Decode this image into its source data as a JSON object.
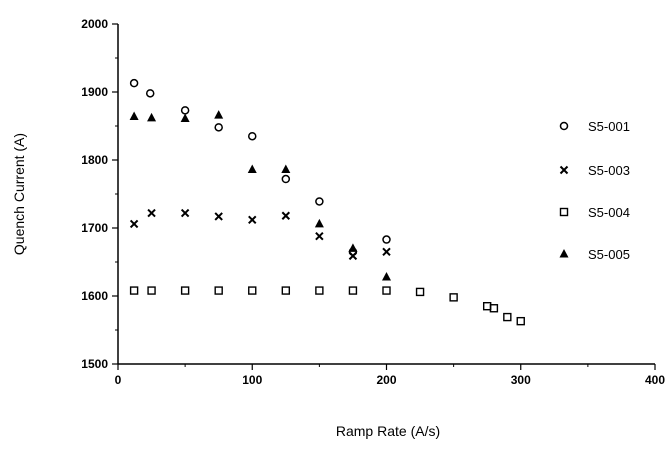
{
  "chart_data": {
    "type": "scatter",
    "xlabel": "Ramp Rate (A/s)",
    "ylabel": "Quench Current (A)",
    "xlim": [
      0,
      400
    ],
    "ylim": [
      1500,
      2000
    ],
    "xticks": [
      "0",
      "100",
      "200",
      "300",
      "400"
    ],
    "yticks": [
      "1500",
      "1600",
      "1700",
      "1800",
      "1900",
      "2000"
    ],
    "grid": false,
    "legend_position": "right",
    "series": [
      {
        "name": "S5-001",
        "marker": "circle",
        "points": [
          [
            12,
            1913
          ],
          [
            24,
            1898
          ],
          [
            50,
            1873
          ],
          [
            75,
            1848
          ],
          [
            100,
            1835
          ],
          [
            125,
            1772
          ],
          [
            150,
            1739
          ],
          [
            175,
            1665
          ],
          [
            200,
            1683
          ]
        ]
      },
      {
        "name": "S5-003",
        "marker": "x",
        "points": [
          [
            12,
            1706
          ],
          [
            25,
            1722
          ],
          [
            50,
            1722
          ],
          [
            75,
            1717
          ],
          [
            100,
            1712
          ],
          [
            125,
            1718
          ],
          [
            150,
            1688
          ],
          [
            175,
            1659
          ],
          [
            200,
            1665
          ]
        ]
      },
      {
        "name": "S5-004",
        "marker": "square",
        "points": [
          [
            12,
            1608
          ],
          [
            25,
            1608
          ],
          [
            50,
            1608
          ],
          [
            75,
            1608
          ],
          [
            100,
            1608
          ],
          [
            125,
            1608
          ],
          [
            150,
            1608
          ],
          [
            175,
            1608
          ],
          [
            200,
            1608
          ],
          [
            225,
            1606
          ],
          [
            250,
            1598
          ],
          [
            275,
            1585
          ],
          [
            280,
            1582
          ],
          [
            290,
            1569
          ],
          [
            300,
            1563
          ]
        ]
      },
      {
        "name": "S5-005",
        "marker": "triangle",
        "points": [
          [
            12,
            1864
          ],
          [
            25,
            1862
          ],
          [
            50,
            1861
          ],
          [
            75,
            1866
          ],
          [
            100,
            1786
          ],
          [
            125,
            1786
          ],
          [
            150,
            1706
          ],
          [
            175,
            1670
          ],
          [
            200,
            1628
          ]
        ]
      }
    ]
  }
}
